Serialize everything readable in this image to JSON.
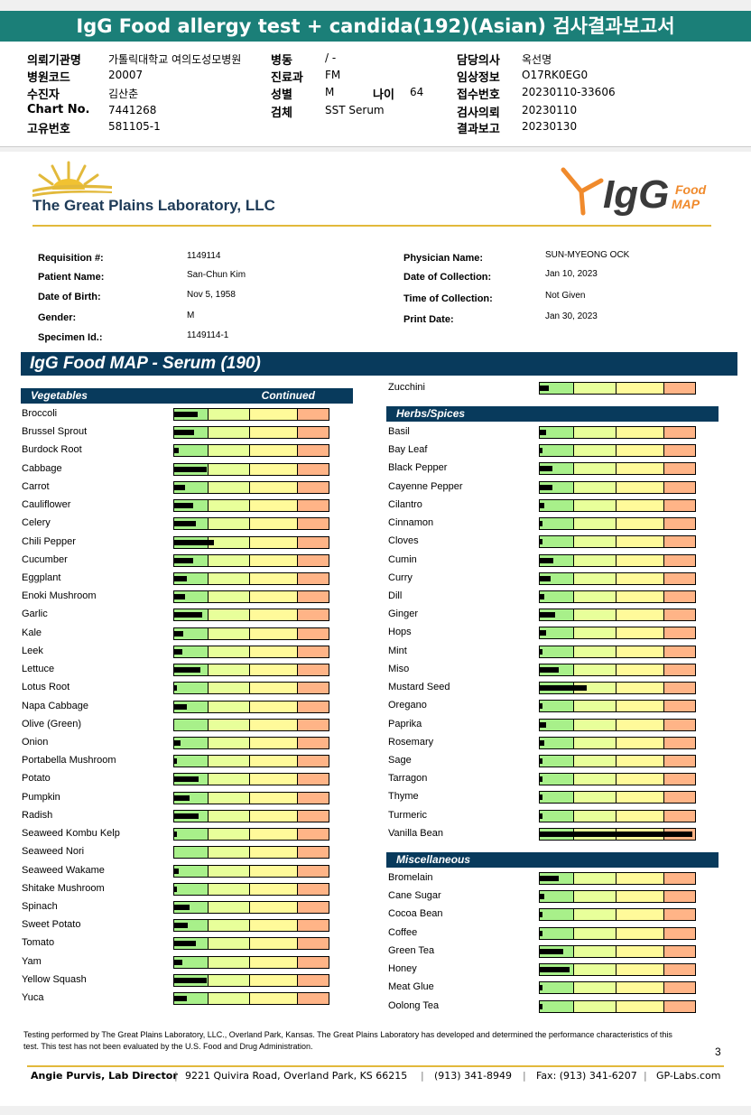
{
  "banner": {
    "title": "IgG Food allergy test + candida(192)(Asian) 검사결과보고서"
  },
  "hospital": {
    "rows": [
      {
        "k": "의뢰기관명",
        "v": "가톨릭대학교 여의도성모병원",
        "k2": "병동",
        "v2": "/ -",
        "k3": "담당의사",
        "v3": "옥선명"
      },
      {
        "k": "병원코드",
        "v": "20007",
        "k2": "진료과",
        "v2": "FM",
        "k3": "임상정보",
        "v3": "O17RK0EG0"
      },
      {
        "k": "수진자",
        "v": "김산춘",
        "k2": "성별",
        "v2": "M",
        "k3": "접수번호",
        "v3": "20230110-33606"
      },
      {
        "k": "Chart No.",
        "v": "7441268",
        "k2": "검체",
        "v2": "SST Serum",
        "k3": "검사의뢰",
        "v3": "20230110"
      },
      {
        "k": "고유번호",
        "v": "581105-1",
        "k2": "",
        "v2": "",
        "k3": "결과보고",
        "v3": "20230130"
      }
    ],
    "age_label": "나이",
    "age_value": "64"
  },
  "lab": {
    "name": "The Great Plains Laboratory, LLC",
    "brand": "IgG",
    "brand_sub1": "Food",
    "brand_sub2": "MAP",
    "colors": {
      "accent": "#f08a2c",
      "navy": "#1d3a57",
      "gold": "#e2b93b"
    }
  },
  "patient": {
    "left": [
      {
        "k": "Requisition #:",
        "v": "1149114"
      },
      {
        "k": "Patient Name:",
        "v": "San-Chun Kim"
      },
      {
        "k": "Date of Birth:",
        "v": "Nov 5, 1958"
      },
      {
        "k": "Gender:",
        "v": "M"
      },
      {
        "k": "Specimen Id.:",
        "v": "1149114-1"
      }
    ],
    "right": [
      {
        "k": "Physician Name:",
        "v": "SUN-MYEONG OCK"
      },
      {
        "k": "Date of Collection:",
        "v": "Jan 10, 2023"
      },
      {
        "k": "Time of Collection:",
        "v": "Not Given"
      },
      {
        "k": "Print Date:",
        "v": "Jan 30, 2023"
      }
    ]
  },
  "section_title": "IgG Food MAP - Serum (190)",
  "vegetables": {
    "header": "Vegetables",
    "continued": "Continued",
    "items": [
      {
        "name": "Broccoli",
        "level": 0.15
      },
      {
        "name": "Brussel Sprout",
        "level": 0.13
      },
      {
        "name": "Burdock Root",
        "level": 0.03
      },
      {
        "name": "Cabbage",
        "level": 0.21
      },
      {
        "name": "Carrot",
        "level": 0.07
      },
      {
        "name": "Cauliflower",
        "level": 0.12
      },
      {
        "name": "Celery",
        "level": 0.14
      },
      {
        "name": "Chili Pepper",
        "level": 0.26
      },
      {
        "name": "Cucumber",
        "level": 0.12
      },
      {
        "name": "Eggplant",
        "level": 0.08
      },
      {
        "name": "Enoki Mushroom",
        "level": 0.07
      },
      {
        "name": "Garlic",
        "level": 0.18
      },
      {
        "name": "Kale",
        "level": 0.06
      },
      {
        "name": "Leek",
        "level": 0.05
      },
      {
        "name": "Lettuce",
        "level": 0.17
      },
      {
        "name": "Lotus Root",
        "level": 0.02
      },
      {
        "name": "Napa Cabbage",
        "level": 0.08
      },
      {
        "name": "Olive (Green)",
        "level": 0.0
      },
      {
        "name": "Onion",
        "level": 0.04
      },
      {
        "name": "Portabella Mushroom",
        "level": 0.02
      },
      {
        "name": "Potato",
        "level": 0.16
      },
      {
        "name": "Pumpkin",
        "level": 0.1
      },
      {
        "name": "Radish",
        "level": 0.16
      },
      {
        "name": "Seaweed Kombu Kelp",
        "level": 0.01
      },
      {
        "name": "Seaweed Nori",
        "level": 0.0
      },
      {
        "name": "Seaweed Wakame",
        "level": 0.03
      },
      {
        "name": "Shitake Mushroom",
        "level": 0.02
      },
      {
        "name": "Spinach",
        "level": 0.1
      },
      {
        "name": "Sweet Potato",
        "level": 0.09
      },
      {
        "name": "Tomato",
        "level": 0.14
      },
      {
        "name": "Yam",
        "level": 0.05
      },
      {
        "name": "Yellow Squash",
        "level": 0.21
      },
      {
        "name": "Yuca",
        "level": 0.08
      }
    ]
  },
  "zucchini": {
    "name": "Zucchini",
    "level": 0.06
  },
  "herbs": {
    "header": "Herbs/Spices",
    "items": [
      {
        "name": "Basil",
        "level": 0.04
      },
      {
        "name": "Bay Leaf",
        "level": 0.02
      },
      {
        "name": "Black Pepper",
        "level": 0.08
      },
      {
        "name": "Cayenne Pepper",
        "level": 0.08
      },
      {
        "name": "Cilantro",
        "level": 0.03
      },
      {
        "name": "Cinnamon",
        "level": 0.02
      },
      {
        "name": "Cloves",
        "level": 0.01
      },
      {
        "name": "Cumin",
        "level": 0.09
      },
      {
        "name": "Curry",
        "level": 0.07
      },
      {
        "name": "Dill",
        "level": 0.03
      },
      {
        "name": "Ginger",
        "level": 0.1
      },
      {
        "name": "Hops",
        "level": 0.04
      },
      {
        "name": "Mint",
        "level": 0.02
      },
      {
        "name": "Miso",
        "level": 0.12
      },
      {
        "name": "Mustard Seed",
        "level": 0.3
      },
      {
        "name": "Oregano",
        "level": 0.01
      },
      {
        "name": "Paprika",
        "level": 0.04
      },
      {
        "name": "Rosemary",
        "level": 0.03
      },
      {
        "name": "Sage",
        "level": 0.01
      },
      {
        "name": "Tarragon",
        "level": 0.01
      },
      {
        "name": "Thyme",
        "level": 0.02
      },
      {
        "name": "Turmeric",
        "level": 0.02
      },
      {
        "name": "Vanilla Bean",
        "level": 0.98
      }
    ]
  },
  "misc": {
    "header": "Miscellaneous",
    "items": [
      {
        "name": "Bromelain",
        "level": 0.12
      },
      {
        "name": "Cane Sugar",
        "level": 0.03
      },
      {
        "name": "Cocoa Bean",
        "level": 0.02
      },
      {
        "name": "Coffee",
        "level": 0.01
      },
      {
        "name": "Green Tea",
        "level": 0.15
      },
      {
        "name": "Honey",
        "level": 0.19
      },
      {
        "name": "Meat Glue",
        "level": 0.02
      },
      {
        "name": "Oolong Tea",
        "level": 0.02
      }
    ]
  },
  "footer": {
    "disclaimer": "Testing performed by The Great Plains Laboratory, LLC., Overland Park, Kansas.  The Great Plains Laboratory has developed and determined the performance characteristics of this test.  This test has not been evaluated by the U.S. Food and Drug Administration.",
    "page": "3",
    "director": "Angie Purvis, Lab Director",
    "address": "9221 Quivira Road, Overland Park, KS 66215",
    "phone": "(913) 341-8949",
    "fax": "Fax: (913) 341-6207",
    "web": "GP-Labs.com"
  }
}
